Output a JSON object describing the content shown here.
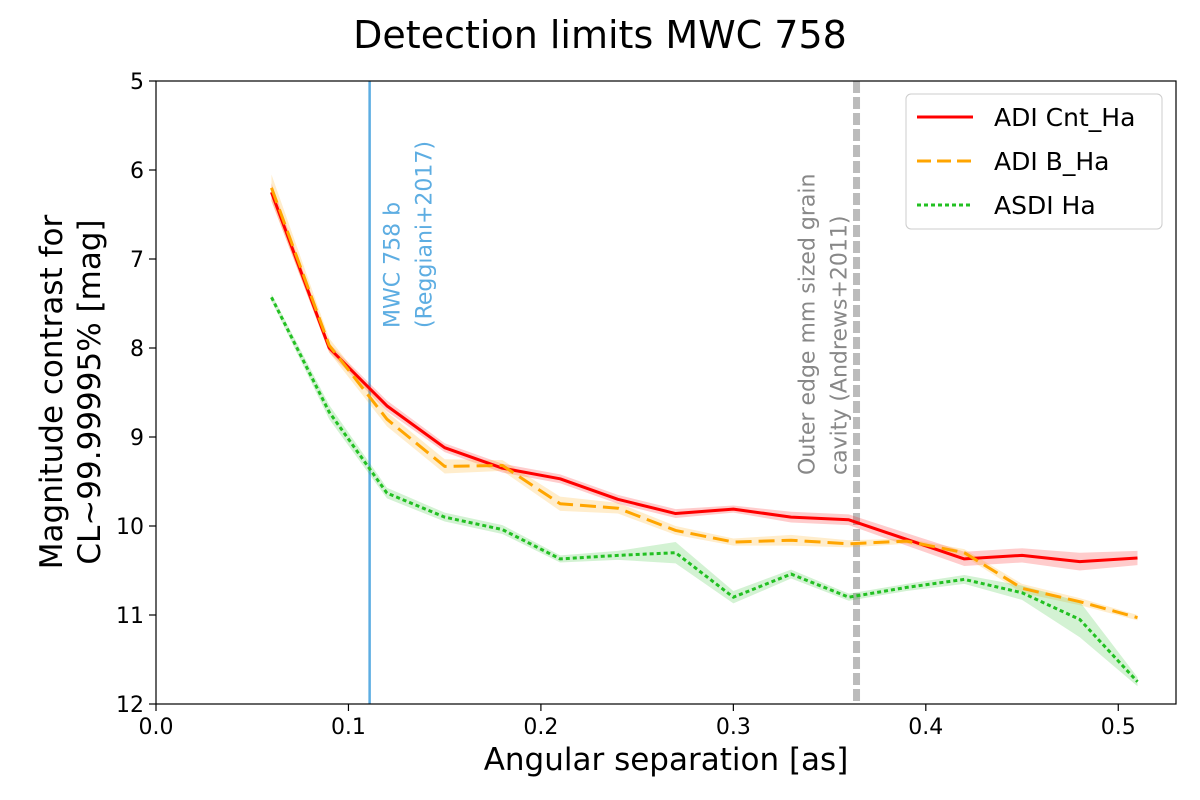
{
  "chart_data": {
    "type": "line",
    "title": "Detection limits MWC 758",
    "xlabel": "Angular separation [as]",
    "ylabel_line1": "Magnitude contrast for",
    "ylabel_line2": "CL~99.99995% [mag]",
    "xlim": [
      0.0,
      0.53
    ],
    "ylim": [
      12,
      5
    ],
    "y_inverted": true,
    "x_ticks": [
      0.0,
      0.1,
      0.2,
      0.3,
      0.4,
      0.5
    ],
    "x_tick_labels": [
      "0.0",
      "0.1",
      "0.2",
      "0.3",
      "0.4",
      "0.5"
    ],
    "y_ticks": [
      5,
      6,
      7,
      8,
      9,
      10,
      11,
      12
    ],
    "y_tick_labels": [
      "5",
      "6",
      "7",
      "8",
      "9",
      "10",
      "11",
      "12"
    ],
    "grid": false,
    "legend_position": "top-right",
    "x": [
      0.06,
      0.09,
      0.12,
      0.15,
      0.18,
      0.21,
      0.24,
      0.27,
      0.3,
      0.33,
      0.36,
      0.39,
      0.42,
      0.45,
      0.48,
      0.51
    ],
    "series": [
      {
        "name": "ADI Cnt_Ha",
        "color": "#ff0000",
        "style": "solid",
        "values": [
          6.25,
          8.0,
          8.65,
          9.12,
          9.35,
          9.47,
          9.7,
          9.86,
          9.81,
          9.9,
          9.93,
          10.15,
          10.37,
          10.33,
          10.4,
          10.36
        ],
        "band_halfwidth": [
          0.1,
          0.05,
          0.06,
          0.05,
          0.05,
          0.05,
          0.05,
          0.05,
          0.04,
          0.06,
          0.06,
          0.07,
          0.08,
          0.08,
          0.1,
          0.08
        ]
      },
      {
        "name": "ADI B_Ha",
        "color": "#ffa500",
        "style": "dashed",
        "values": [
          6.2,
          7.97,
          8.8,
          9.33,
          9.32,
          9.75,
          9.8,
          10.05,
          10.18,
          10.16,
          10.2,
          10.17,
          10.3,
          10.7,
          10.85,
          11.03
        ],
        "band_halfwidth": [
          0.15,
          0.08,
          0.08,
          0.08,
          0.06,
          0.08,
          0.06,
          0.05,
          0.04,
          0.06,
          0.04,
          0.03,
          0.04,
          0.05,
          0.04,
          0.03
        ]
      },
      {
        "name": "ASDI Ha",
        "color": "#22c022",
        "style": "dotted",
        "values": [
          7.43,
          8.72,
          9.63,
          9.9,
          10.04,
          10.37,
          10.33,
          10.3,
          10.8,
          10.54,
          10.8,
          10.69,
          10.6,
          10.75,
          11.05,
          11.75
        ],
        "band_halfwidth": [
          0.04,
          0.08,
          0.06,
          0.05,
          0.05,
          0.04,
          0.05,
          0.12,
          0.07,
          0.05,
          0.04,
          0.04,
          0.05,
          0.08,
          0.2,
          0.05
        ]
      }
    ],
    "vlines": [
      {
        "x": 0.111,
        "color": "#5dade2",
        "style": "solid",
        "label_line1": "MWC 758 b",
        "label_line2": "(Reggiani+2017)",
        "label_color": "#5dade2"
      },
      {
        "x": 0.364,
        "color": "#bbbbbb",
        "style": "dashed",
        "label_line1": "Outer edge mm sized grain",
        "label_line2": "cavity (Andrews+2011)",
        "label_color": "#888888"
      }
    ]
  }
}
